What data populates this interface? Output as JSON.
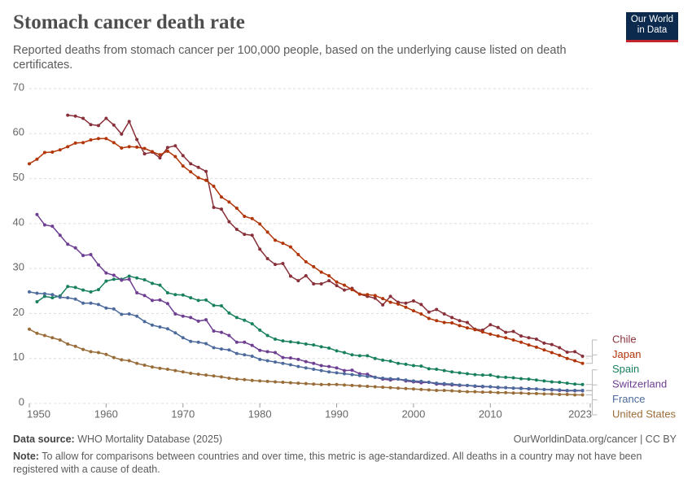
{
  "header": {
    "title": "Stomach cancer death rate",
    "subtitle": "Reported deaths from stomach cancer per 100,000 people, based on the underlying cause listed on death certificates.",
    "logo_line1": "Our World",
    "logo_line2": "in Data"
  },
  "chart_data": {
    "type": "line",
    "x": [
      1950,
      1951,
      1952,
      1953,
      1954,
      1955,
      1956,
      1957,
      1958,
      1959,
      1960,
      1961,
      1962,
      1963,
      1964,
      1965,
      1966,
      1967,
      1968,
      1969,
      1970,
      1971,
      1972,
      1973,
      1974,
      1975,
      1976,
      1977,
      1978,
      1979,
      1980,
      1981,
      1982,
      1983,
      1984,
      1985,
      1986,
      1987,
      1988,
      1989,
      1990,
      1991,
      1992,
      1993,
      1994,
      1995,
      1996,
      1997,
      1998,
      1999,
      2000,
      2001,
      2002,
      2003,
      2004,
      2005,
      2006,
      2007,
      2008,
      2009,
      2010,
      2011,
      2012,
      2013,
      2014,
      2015,
      2016,
      2017,
      2018,
      2019,
      2020,
      2021,
      2022
    ],
    "xlim": [
      1950,
      2023
    ],
    "xticks": [
      1950,
      1960,
      1970,
      1980,
      1990,
      2000,
      2010,
      2023
    ],
    "ylim": [
      0,
      70
    ],
    "yticks": [
      0,
      10,
      20,
      30,
      40,
      50,
      60,
      70
    ],
    "grid": true,
    "series": [
      {
        "name": "Chile",
        "color": "#883039",
        "values": [
          null,
          null,
          null,
          null,
          null,
          64.1,
          63.9,
          63.4,
          62.0,
          61.8,
          63.4,
          61.9,
          59.9,
          62.7,
          58.7,
          55.5,
          55.9,
          54.6,
          56.9,
          57.3,
          55.1,
          53.3,
          52.5,
          51.6,
          43.6,
          43.2,
          40.4,
          38.7,
          37.6,
          37.4,
          34.3,
          32.2,
          30.9,
          31.1,
          28.3,
          27.3,
          28.4,
          26.6,
          26.6,
          27.3,
          26.2,
          25.2,
          25.6,
          24.3,
          23.8,
          23.4,
          21.9,
          23.8,
          22.5,
          22.3,
          22.8,
          22.0,
          20.3,
          20.9,
          19.9,
          19.1,
          18.4,
          18.0,
          16.5,
          16.3,
          17.5,
          16.9,
          15.8,
          16.0,
          15.0,
          14.6,
          14.3,
          13.4,
          13.1,
          12.4,
          11.4,
          11.5,
          10.5
        ]
      },
      {
        "name": "Japan",
        "color": "#b13507",
        "values": [
          53.3,
          54.3,
          55.8,
          55.9,
          56.4,
          57.1,
          57.9,
          58.0,
          58.6,
          58.9,
          58.9,
          58.0,
          56.8,
          57.1,
          57.0,
          56.7,
          56.0,
          55.3,
          56.1,
          54.9,
          52.8,
          51.5,
          50.2,
          49.6,
          48.3,
          45.9,
          44.8,
          43.4,
          41.6,
          41.1,
          39.9,
          38.1,
          36.3,
          35.6,
          34.8,
          33.1,
          31.5,
          30.4,
          29.2,
          28.4,
          27.0,
          26.3,
          25.3,
          24.3,
          24.2,
          24.0,
          23.3,
          22.5,
          22.1,
          21.4,
          20.6,
          19.9,
          18.9,
          18.4,
          18.0,
          17.9,
          17.3,
          16.8,
          16.4,
          15.9,
          15.4,
          15.0,
          14.6,
          14.1,
          13.6,
          13.0,
          12.5,
          11.9,
          11.3,
          10.7,
          10.0,
          9.5,
          8.9
        ]
      },
      {
        "name": "Spain",
        "color": "#18805f",
        "values": [
          null,
          22.6,
          23.8,
          23.5,
          23.9,
          26.0,
          25.8,
          25.2,
          24.8,
          25.3,
          27.2,
          27.6,
          27.6,
          28.3,
          27.9,
          27.5,
          26.7,
          26.3,
          24.6,
          24.2,
          24.1,
          23.5,
          22.9,
          23.0,
          21.8,
          21.7,
          20.1,
          19.1,
          18.5,
          17.7,
          16.3,
          15.1,
          14.3,
          13.9,
          13.7,
          13.5,
          13.2,
          13.0,
          12.6,
          12.3,
          11.7,
          11.3,
          10.8,
          10.6,
          10.6,
          10.0,
          9.6,
          9.4,
          8.9,
          8.7,
          8.4,
          8.3,
          7.7,
          7.6,
          7.3,
          7.0,
          6.8,
          6.6,
          6.4,
          6.3,
          6.3,
          5.9,
          5.8,
          5.7,
          5.5,
          5.4,
          5.2,
          5.0,
          4.8,
          4.7,
          4.5,
          4.3,
          4.2
        ]
      },
      {
        "name": "Switzerland",
        "color": "#6d3e91",
        "values": [
          null,
          42.0,
          39.7,
          39.4,
          37.4,
          35.4,
          34.6,
          32.9,
          33.1,
          30.8,
          29.0,
          28.5,
          27.4,
          27.6,
          24.6,
          24.0,
          22.9,
          23.0,
          22.2,
          19.9,
          19.4,
          19.1,
          18.3,
          18.6,
          16.1,
          15.8,
          15.1,
          13.6,
          13.6,
          12.9,
          11.8,
          11.5,
          11.3,
          10.2,
          10.1,
          9.8,
          9.3,
          8.9,
          8.4,
          8.2,
          7.9,
          7.3,
          7.4,
          6.6,
          6.5,
          5.8,
          5.4,
          5.2,
          5.4,
          5.0,
          4.8,
          4.6,
          4.7,
          4.3,
          4.2,
          4.1,
          4.0,
          4.0,
          3.8,
          3.7,
          3.7,
          3.5,
          3.5,
          3.4,
          3.4,
          3.2,
          3.2,
          3.1,
          3.0,
          2.9,
          2.8,
          2.8,
          2.8
        ]
      },
      {
        "name": "France",
        "color": "#4c6a9c",
        "values": [
          24.8,
          24.5,
          24.4,
          24.2,
          23.6,
          23.5,
          23.2,
          22.3,
          22.3,
          22.0,
          21.2,
          21.0,
          19.8,
          19.9,
          19.4,
          18.2,
          17.4,
          17.0,
          16.6,
          15.7,
          14.6,
          13.8,
          13.6,
          13.3,
          12.4,
          12.1,
          11.9,
          11.1,
          10.8,
          10.5,
          9.8,
          9.5,
          9.2,
          8.9,
          8.6,
          8.2,
          7.9,
          7.6,
          7.3,
          7.0,
          6.8,
          6.6,
          6.4,
          6.2,
          6.0,
          5.8,
          5.6,
          5.5,
          5.4,
          5.2,
          5.0,
          4.9,
          4.7,
          4.5,
          4.4,
          4.3,
          4.1,
          4.0,
          3.9,
          3.8,
          3.7,
          3.6,
          3.5,
          3.4,
          3.3,
          3.3,
          3.2,
          3.1,
          3.1,
          3.0,
          2.9,
          2.9,
          2.9
        ]
      },
      {
        "name": "United States",
        "color": "#996d39",
        "values": [
          16.5,
          15.6,
          15.1,
          14.6,
          14.1,
          13.2,
          12.7,
          12.0,
          11.5,
          11.3,
          10.9,
          10.2,
          9.7,
          9.5,
          8.9,
          8.5,
          8.1,
          7.8,
          7.6,
          7.3,
          7.0,
          6.7,
          6.5,
          6.3,
          6.1,
          5.9,
          5.6,
          5.4,
          5.3,
          5.1,
          5.0,
          4.9,
          4.8,
          4.7,
          4.6,
          4.5,
          4.4,
          4.3,
          4.2,
          4.2,
          4.2,
          4.1,
          4.0,
          3.9,
          3.8,
          3.7,
          3.6,
          3.5,
          3.4,
          3.3,
          3.2,
          3.1,
          3.0,
          2.9,
          2.9,
          2.8,
          2.7,
          2.6,
          2.6,
          2.5,
          2.5,
          2.4,
          2.4,
          2.3,
          2.3,
          2.2,
          2.2,
          2.1,
          2.1,
          2.0,
          2.0,
          1.9,
          1.9
        ]
      }
    ]
  },
  "footer": {
    "source_label": "Data source:",
    "source_text": "WHO Mortality Database (2025)",
    "url": "OurWorldinData.org/cancer | CC BY",
    "note_label": "Note:",
    "note_text": "To allow for comparisons between countries and over time, this metric is age-standardized. All deaths in a country may not have been registered with a cause of death."
  }
}
